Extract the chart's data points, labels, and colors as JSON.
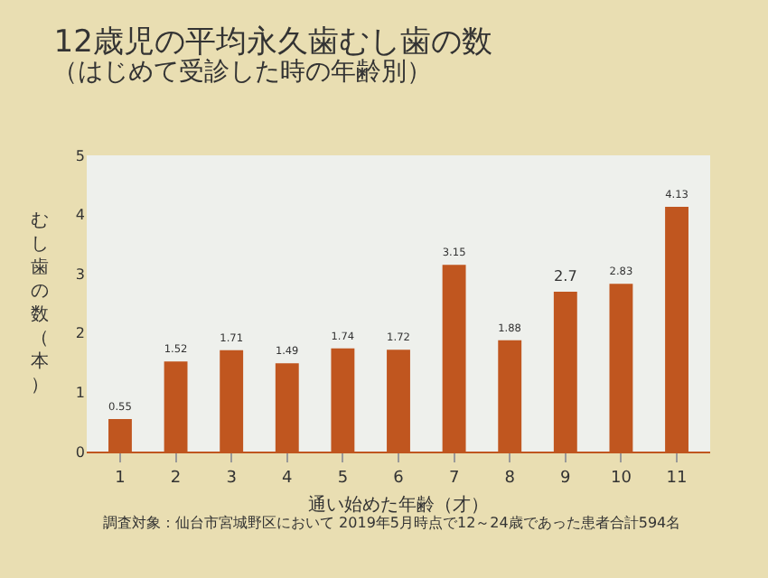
{
  "chart_data": {
    "type": "bar",
    "title": "12歳児の平均永久歯むし歯の数",
    "subtitle": "（はじめて受診した時の年齢別）",
    "xlabel": "通い始めた年齢（才）",
    "ylabel": "むし歯の数（本）",
    "categories": [
      "1",
      "2",
      "3",
      "4",
      "5",
      "6",
      "7",
      "8",
      "9",
      "10",
      "11"
    ],
    "values": [
      0.55,
      1.52,
      1.71,
      1.49,
      1.74,
      1.72,
      3.15,
      1.88,
      2.7,
      2.83,
      4.13
    ],
    "color": "#c0561f",
    "ylim": [
      0,
      5
    ],
    "yticks": [
      0,
      1,
      2,
      3,
      4,
      5
    ],
    "grid": false,
    "data_labels": true,
    "annotations": [
      "調査対象：仙台市宮城野区において 2019年5月時点で12～24歳であった患者合計594名"
    ]
  }
}
